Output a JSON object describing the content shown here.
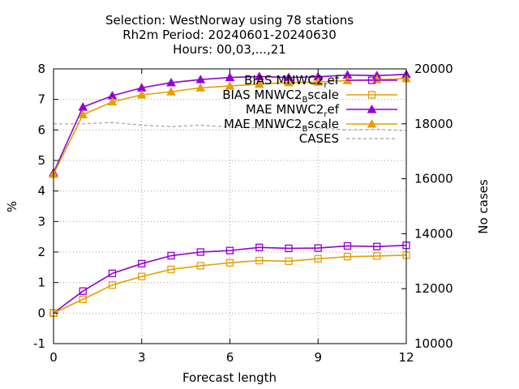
{
  "chart_data": {
    "type": "line",
    "title_lines": [
      "Selection: WestNorway using    78 stations",
      "Rh2m   Period: 20240601-20240630",
      "Hours: 00,03,...,21"
    ],
    "xlabel": "Forecast length",
    "ylabel": "%",
    "y2label": "No cases",
    "xlim": [
      0,
      12
    ],
    "ylim": [
      -1,
      8
    ],
    "y2lim": [
      10000,
      20000
    ],
    "xticks": [
      0,
      3,
      6,
      9,
      12
    ],
    "yticks": [
      -1,
      0,
      1,
      2,
      3,
      4,
      5,
      6,
      7,
      8
    ],
    "y2ticks": [
      10000,
      12000,
      14000,
      16000,
      18000,
      20000
    ],
    "grid": true,
    "legend_position": "top-right",
    "x": [
      0,
      1,
      2,
      3,
      4,
      5,
      6,
      7,
      8,
      9,
      10,
      11,
      12
    ],
    "series": [
      {
        "name": "BIAS MNWC2_ref",
        "legend_main": "BIAS MNWC2",
        "legend_sub": "r",
        "legend_tail": "ef",
        "color": "#9400d3",
        "marker": "square-open",
        "axis": "y1",
        "values": [
          0.0,
          0.72,
          1.3,
          1.62,
          1.88,
          2.0,
          2.05,
          2.15,
          2.12,
          2.13,
          2.2,
          2.18,
          2.22
        ]
      },
      {
        "name": "BIAS MNWC2_Bscale",
        "legend_main": "BIAS MNWC2",
        "legend_sub": "B",
        "legend_tail": "scale",
        "color": "#e69f00",
        "marker": "square-open",
        "axis": "y1",
        "values": [
          0.0,
          0.45,
          0.92,
          1.2,
          1.43,
          1.55,
          1.65,
          1.72,
          1.7,
          1.78,
          1.85,
          1.87,
          1.9
        ]
      },
      {
        "name": "MAE MNWC2_ref",
        "legend_main": "MAE MNWC2",
        "legend_sub": "r",
        "legend_tail": "ef",
        "color": "#9400d3",
        "marker": "triangle-filled",
        "axis": "y1",
        "values": [
          4.6,
          6.75,
          7.12,
          7.38,
          7.55,
          7.65,
          7.72,
          7.75,
          7.72,
          7.74,
          7.8,
          7.78,
          7.82
        ]
      },
      {
        "name": "MAE MNWC2_Bscale",
        "legend_main": "MAE MNWC2",
        "legend_sub": "B",
        "legend_tail": "scale",
        "color": "#e69f00",
        "marker": "triangle-filled",
        "axis": "y1",
        "values": [
          4.55,
          6.5,
          6.92,
          7.15,
          7.25,
          7.38,
          7.44,
          7.5,
          7.55,
          7.57,
          7.62,
          7.65,
          7.68
        ]
      },
      {
        "name": "CASES",
        "legend_main": "CASES",
        "legend_sub": "",
        "legend_tail": "",
        "color": "#a0a0a0",
        "marker": "none",
        "dashed": true,
        "axis": "y2",
        "values": [
          18000,
          18000,
          18050,
          17950,
          17900,
          17950,
          17880,
          17850,
          17900,
          17850,
          17780,
          17800,
          17750
        ]
      }
    ]
  }
}
